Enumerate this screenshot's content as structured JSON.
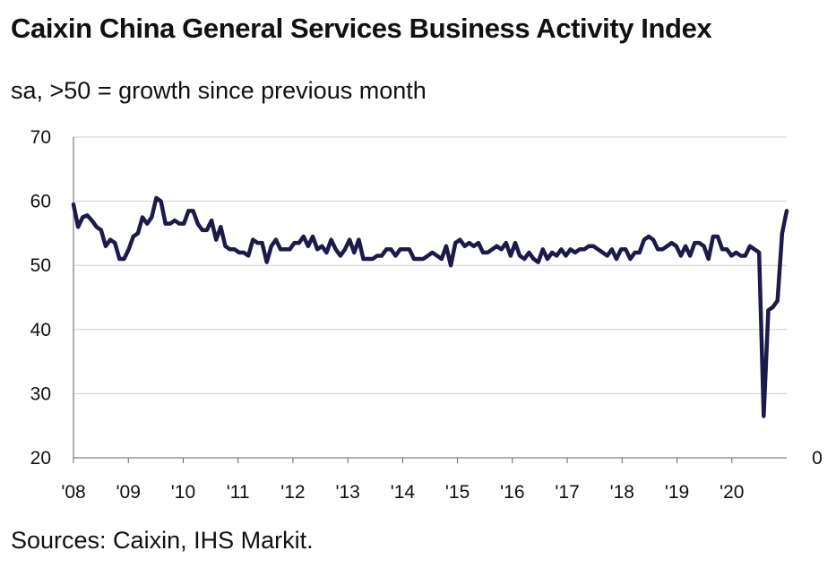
{
  "title": "Caixin China General Services Business Activity Index",
  "subtitle": "sa, >50 = growth since previous month",
  "source": "Sources: Caixin, IHS Markit.",
  "chart_data": {
    "type": "line",
    "title": "Caixin China General Services Business Activity Index",
    "subtitle": "sa, >50 = growth since previous month",
    "xlabel": "",
    "ylabel": "",
    "ylim": [
      20,
      70
    ],
    "y_ticks": [
      "70",
      "60",
      "50",
      "40",
      "30",
      "20"
    ],
    "secondary_axis_label": "0",
    "x_ticks": [
      "'08",
      "'09",
      "'10",
      "'11",
      "'12",
      "'13",
      "'14",
      "'15",
      "'16",
      "'17",
      "'18",
      "'19",
      "'20"
    ],
    "grid": true,
    "line_color": "#1c1a4a",
    "series": [
      {
        "values": [
          59.5,
          56.0,
          57.5,
          57.8,
          57.0,
          56.0,
          55.5,
          53.0,
          54.0,
          53.5,
          51.0,
          51.0,
          52.5,
          54.5,
          55.0,
          57.5,
          56.5,
          57.5,
          60.5,
          60.0,
          56.5,
          56.5,
          57.0,
          56.5,
          56.5,
          58.5,
          58.5,
          56.5,
          55.5,
          55.5,
          57.0,
          54.0,
          56.0,
          53.0,
          52.5,
          52.5,
          52.0,
          52.0,
          51.5,
          54.0,
          53.5,
          53.5,
          50.5,
          53.0,
          54.0,
          52.5,
          52.5,
          52.5,
          53.5,
          53.5,
          54.5,
          53.0,
          54.5,
          52.5,
          53.0,
          52.0,
          54.0,
          52.5,
          51.5,
          52.5,
          54.0,
          52.0,
          54.0,
          51.0,
          51.0,
          51.0,
          51.5,
          51.5,
          52.5,
          52.5,
          51.5,
          52.5,
          52.5,
          52.5,
          51.0,
          51.0,
          51.0,
          51.5,
          52.0,
          51.5,
          51.0,
          53.0,
          50.0,
          53.5,
          54.0,
          53.0,
          53.5,
          53.0,
          53.5,
          52.0,
          52.0,
          52.5,
          53.0,
          52.5,
          53.5,
          51.5,
          53.5,
          51.5,
          51.0,
          52.0,
          51.0,
          50.5,
          52.5,
          51.0,
          52.0,
          51.5,
          52.5,
          51.5,
          52.5,
          52.0,
          52.5,
          52.5,
          53.0,
          53.0,
          52.5,
          52.0,
          51.5,
          52.5,
          51.0,
          52.5,
          52.5,
          51.0,
          52.0,
          52.0,
          54.0,
          54.5,
          54.0,
          52.5,
          52.5,
          53.0,
          53.5,
          53.0,
          51.5,
          53.0,
          51.5,
          53.5,
          53.5,
          53.0,
          51.0,
          54.5,
          54.5,
          52.5,
          52.5,
          51.5,
          52.0,
          51.5,
          51.5,
          53.0,
          52.5,
          52.0,
          26.5,
          43.0,
          43.5,
          44.5,
          55.0,
          58.5
        ]
      }
    ]
  }
}
